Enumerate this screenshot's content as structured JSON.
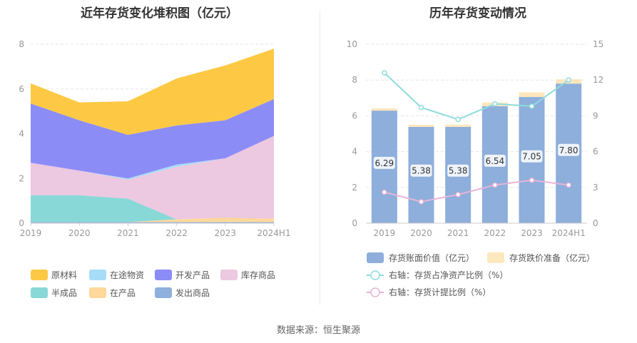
{
  "source": "数据来源：恒生聚源",
  "chart_data": [
    {
      "type": "area",
      "stacked": true,
      "title": "近年存货变化堆积图（亿元）",
      "x": [
        "2019",
        "2020",
        "2021",
        "2022",
        "2023",
        "2024H1"
      ],
      "ylim": [
        0,
        8
      ],
      "yticks": [
        "0",
        "2",
        "4",
        "6",
        "8"
      ],
      "grid": true,
      "legend_position": "bottom",
      "series": [
        {
          "name": "发出商品",
          "color": "#8fb0dc",
          "values": [
            0.05,
            0.05,
            0.05,
            0.05,
            0.05,
            0.05
          ]
        },
        {
          "name": "在产品",
          "color": "#ffd89a",
          "values": [
            0.0,
            0.0,
            0.0,
            0.12,
            0.2,
            0.15
          ]
        },
        {
          "name": "半成品",
          "color": "#89d8d8",
          "values": [
            1.2,
            1.2,
            1.05,
            0.0,
            0.0,
            0.0
          ]
        },
        {
          "name": "库存商品",
          "color": "#ecc8e1",
          "values": [
            1.45,
            1.1,
            0.85,
            2.35,
            2.65,
            3.7
          ]
        },
        {
          "name": "在途物资",
          "color": "#a6dcf7",
          "values": [
            0.0,
            0.0,
            0.05,
            0.1,
            0.0,
            0.0
          ]
        },
        {
          "name": "开发产品",
          "color": "#8c8cf6",
          "values": [
            2.65,
            2.25,
            1.95,
            1.75,
            1.7,
            1.65
          ]
        },
        {
          "name": "原材料",
          "color": "#fdc944",
          "values": [
            0.9,
            0.8,
            1.5,
            2.1,
            2.45,
            2.25
          ]
        }
      ],
      "legend": [
        {
          "name": "原材料",
          "color": "#fdc944"
        },
        {
          "name": "在途物资",
          "color": "#a6dcf7"
        },
        {
          "name": "开发产品",
          "color": "#8c8cf6"
        },
        {
          "name": "库存商品",
          "color": "#ecc8e1"
        },
        {
          "name": "半成品",
          "color": "#89d8d8"
        },
        {
          "name": "在产品",
          "color": "#ffd89a"
        },
        {
          "name": "发出商品",
          "color": "#8fb0dc"
        }
      ]
    },
    {
      "type": "bar",
      "title": "历年存货变动情况",
      "categories": [
        "2019",
        "2020",
        "2021",
        "2022",
        "2023",
        "2024H1"
      ],
      "ylim": [
        0,
        10
      ],
      "yticks": [
        "0",
        "2",
        "4",
        "6",
        "8",
        "10"
      ],
      "y2lim": [
        0,
        15
      ],
      "y2ticks": [
        "0",
        "3",
        "6",
        "9",
        "12",
        "15"
      ],
      "grid": true,
      "legend_position": "bottom",
      "series": [
        {
          "name": "存货账面价值（亿元）",
          "color": "#8eaedb",
          "values": [
            6.29,
            5.38,
            5.38,
            6.54,
            7.05,
            7.8
          ],
          "labels": [
            "6.29",
            "5.38",
            "5.38",
            "6.54",
            "7.05",
            "7.80"
          ]
        },
        {
          "name": "存货跌价准备（亿元）",
          "color": "#fde7bd",
          "values": [
            0.13,
            0.12,
            0.13,
            0.2,
            0.26,
            0.24
          ]
        },
        {
          "name": "右轴：存货占净资产比例（%）",
          "color": "#8fdcdc",
          "axis": "right",
          "values": [
            12.6,
            9.7,
            8.7,
            10.0,
            9.8,
            12.0
          ]
        },
        {
          "name": "右轴：存货计提比例（%）",
          "color": "#e8b4d8",
          "axis": "right",
          "values": [
            2.6,
            1.8,
            2.4,
            3.2,
            3.6,
            3.2
          ]
        }
      ]
    }
  ]
}
